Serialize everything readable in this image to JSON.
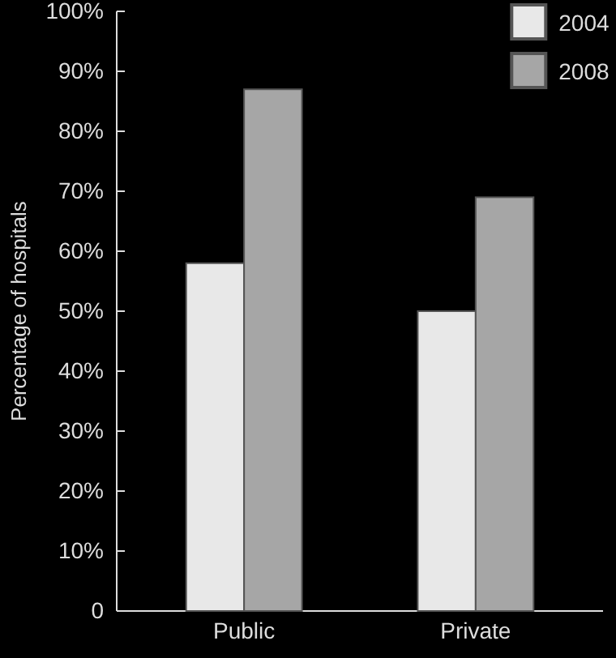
{
  "chart_data": {
    "type": "bar",
    "ylabel": "Percentage of hospitals",
    "categories": [
      "Public",
      "Private"
    ],
    "series": [
      {
        "name": "2004",
        "color": "#e8e8e8",
        "values": [
          58,
          50
        ]
      },
      {
        "name": "2008",
        "color": "#a6a6a6",
        "values": [
          87,
          69
        ]
      }
    ],
    "ylim": [
      0,
      100
    ],
    "yticks": [
      {
        "value": 0,
        "label": "0"
      },
      {
        "value": 10,
        "label": "10%"
      },
      {
        "value": 20,
        "label": "20%"
      },
      {
        "value": 30,
        "label": "30%"
      },
      {
        "value": 40,
        "label": "40%"
      },
      {
        "value": 50,
        "label": "50%"
      },
      {
        "value": 60,
        "label": "60%"
      },
      {
        "value": 70,
        "label": "70%"
      },
      {
        "value": 80,
        "label": "80%"
      },
      {
        "value": 90,
        "label": "90%"
      },
      {
        "value": 100,
        "label": "100%"
      }
    ],
    "legend": "top right",
    "grid": false
  }
}
